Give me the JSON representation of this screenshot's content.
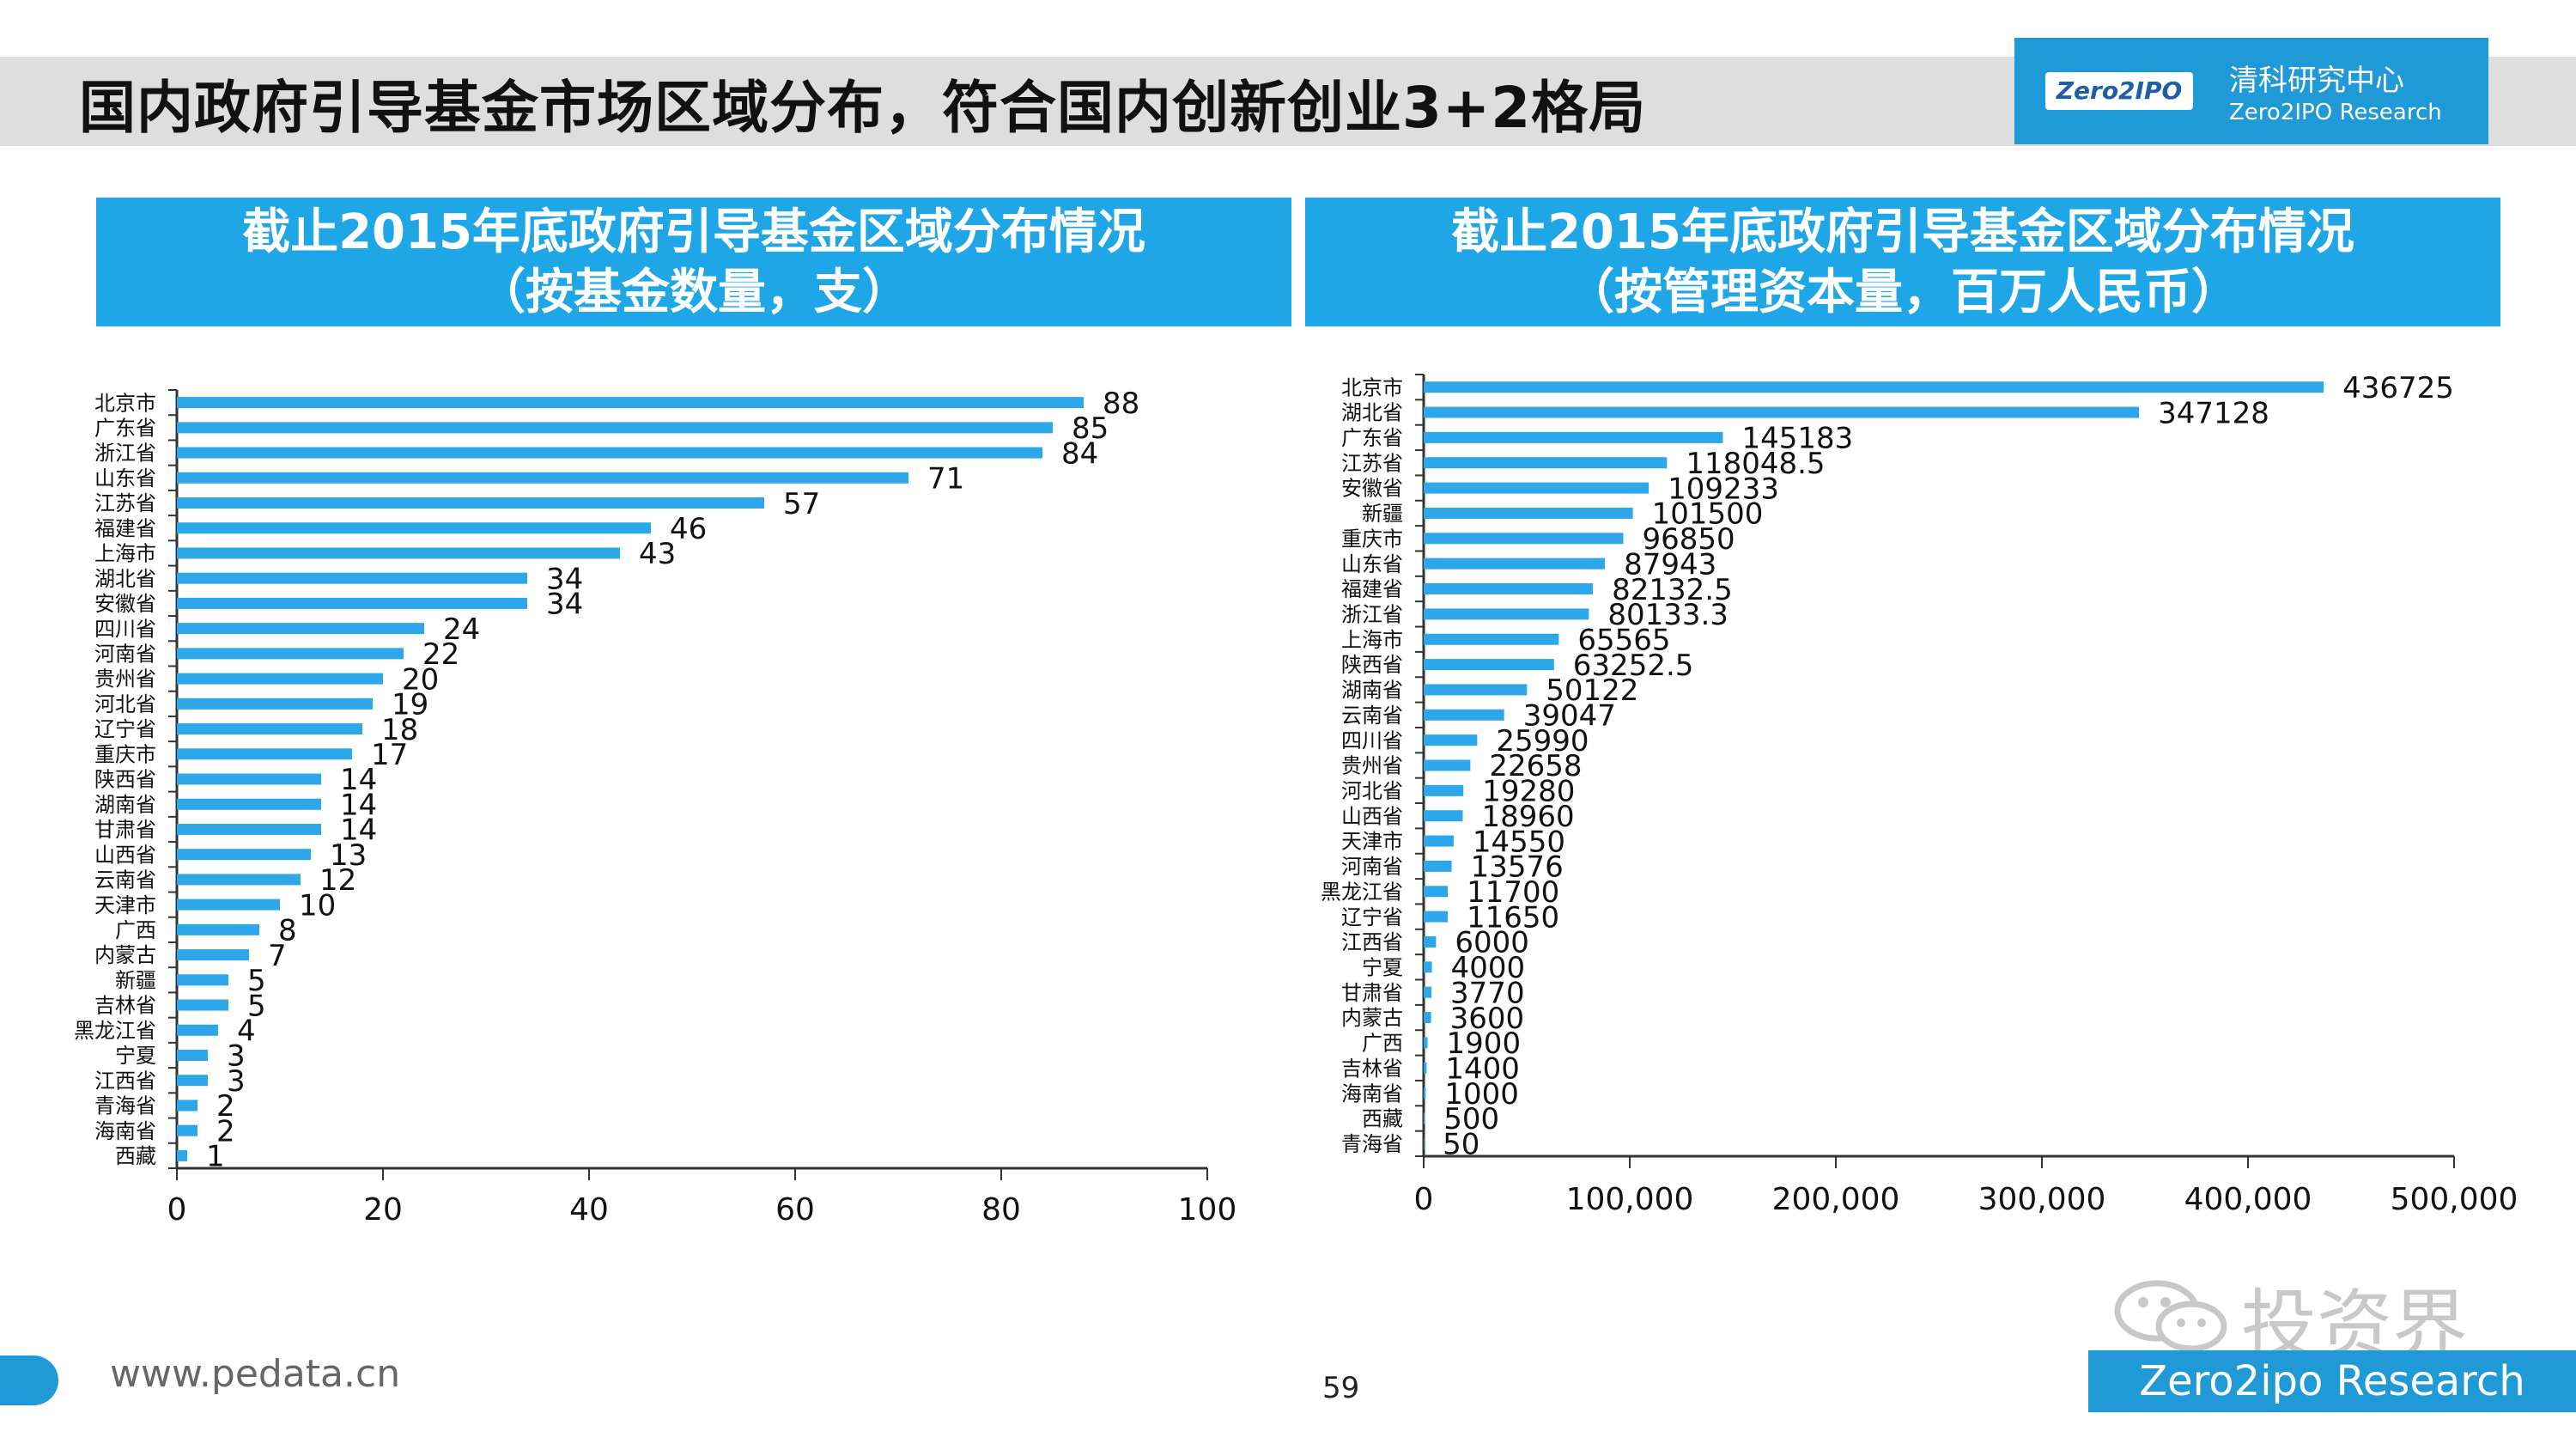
{
  "page": {
    "title": "国内政府引导基金市场区域分布，符合国内创新创业3+2格局",
    "page_number": "59",
    "footer_url": "www.pedata.cn",
    "footer_brand": "Zero2ipo Research",
    "watermark": "投资界",
    "brand": {
      "logo": "Zero2IPO",
      "name_cn": "清科研究中心",
      "name_en": "Zero2IPO Research"
    },
    "colors": {
      "bar": "#2ea7ea",
      "header": "#1fa6e6",
      "brand": "#1f9ad6"
    }
  },
  "chart_data": [
    {
      "type": "bar",
      "orientation": "horizontal",
      "title": "截止2015年底政府引导基金区域分布情况",
      "subtitle": "（按基金数量，支）",
      "categories": [
        "北京市",
        "广东省",
        "浙江省",
        "山东省",
        "江苏省",
        "福建省",
        "上海市",
        "湖北省",
        "安徽省",
        "四川省",
        "河南省",
        "贵州省",
        "河北省",
        "辽宁省",
        "重庆市",
        "陕西省",
        "湖南省",
        "甘肃省",
        "山西省",
        "云南省",
        "天津市",
        "广西",
        "内蒙古",
        "新疆",
        "吉林省",
        "黑龙江省",
        "宁夏",
        "江西省",
        "青海省",
        "海南省",
        "西藏"
      ],
      "values": [
        88,
        85,
        84,
        71,
        57,
        46,
        43,
        34,
        34,
        24,
        22,
        20,
        19,
        18,
        17,
        14,
        14,
        14,
        13,
        12,
        10,
        8,
        7,
        5,
        5,
        4,
        3,
        3,
        2,
        2,
        1
      ],
      "value_labels": [
        "88",
        "85",
        "84",
        "71",
        "57",
        "46",
        "43",
        "34",
        "34",
        "24",
        "22",
        "20",
        "19",
        "18",
        "17",
        "14",
        "14",
        "14",
        "13",
        "12",
        "10",
        "8",
        "7",
        "5",
        "5",
        "4",
        "3",
        "3",
        "2",
        "2",
        "1"
      ],
      "xlim": [
        0,
        100
      ],
      "x_ticks": [
        "0",
        "20",
        "40",
        "60",
        "80",
        "100"
      ],
      "xlabel": "",
      "ylabel": "",
      "grid": false,
      "legend": "none"
    },
    {
      "type": "bar",
      "orientation": "horizontal",
      "title": "截止2015年底政府引导基金区域分布情况",
      "subtitle": "（按管理资本量，百万人民币）",
      "categories": [
        "北京市",
        "湖北省",
        "广东省",
        "江苏省",
        "安徽省",
        "新疆",
        "重庆市",
        "山东省",
        "福建省",
        "浙江省",
        "上海市",
        "陕西省",
        "湖南省",
        "云南省",
        "四川省",
        "贵州省",
        "河北省",
        "山西省",
        "天津市",
        "河南省",
        "黑龙江省",
        "辽宁省",
        "江西省",
        "宁夏",
        "甘肃省",
        "内蒙古",
        "广西",
        "吉林省",
        "海南省",
        "西藏",
        "青海省"
      ],
      "values": [
        436725,
        347128,
        145183,
        118048.5,
        109233,
        101500,
        96850,
        87943,
        82132.5,
        80133.3,
        65565,
        63252.5,
        50122,
        39047,
        25990,
        22658,
        19280,
        18960,
        14550,
        13576,
        11700,
        11650,
        6000,
        4000,
        3770,
        3600,
        1900,
        1400,
        1000,
        500,
        50
      ],
      "value_labels": [
        "436725",
        "347128",
        "145183",
        "118048.5",
        "109233",
        "101500",
        "96850",
        "87943",
        "82132.5",
        "80133.3",
        "65565",
        "63252.5",
        "50122",
        "39047",
        "25990",
        "22658",
        "19280",
        "18960",
        "14550",
        "13576",
        "11700",
        "11650",
        "6000",
        "4000",
        "3770",
        "3600",
        "1900",
        "1400",
        "1000",
        "500",
        "50"
      ],
      "xlim": [
        0,
        500000
      ],
      "x_ticks": [
        "0",
        "100,000",
        "200,000",
        "300,000",
        "400,000",
        "500,000"
      ],
      "xlabel": "",
      "ylabel": "",
      "grid": false,
      "legend": "none"
    }
  ]
}
